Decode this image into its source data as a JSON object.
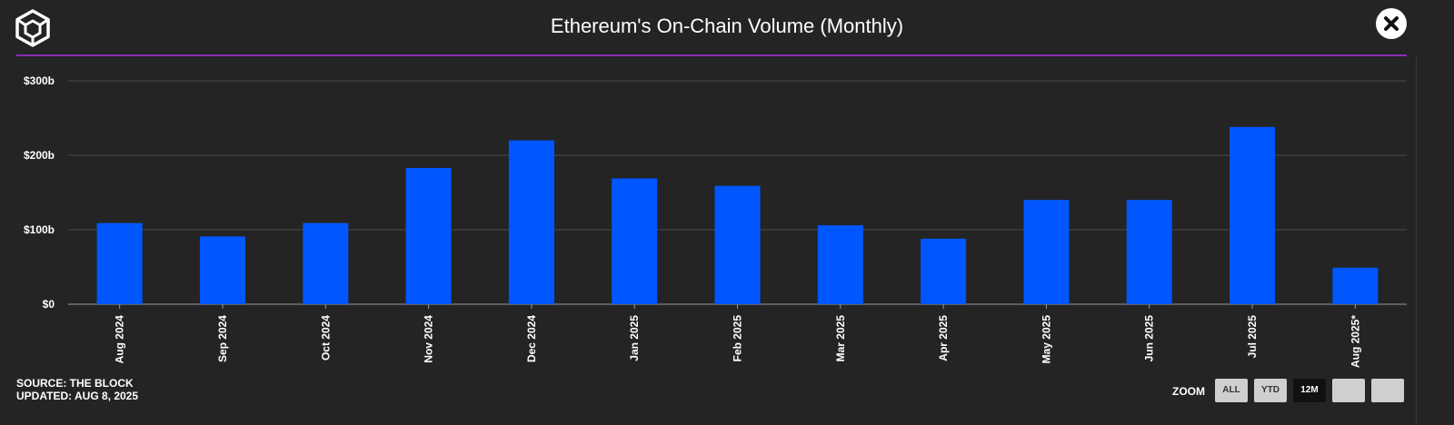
{
  "header": {
    "title": "Ethereum's On-Chain Volume (Monthly)"
  },
  "icons": {
    "logo": "cube-logo-icon",
    "close": "close-icon"
  },
  "colors": {
    "background": "#242424",
    "bar": "#0057ff",
    "accent_line": "#8a2bb8",
    "grid": "#4a4a4a"
  },
  "footer": {
    "source": "SOURCE: THE BLOCK",
    "updated": "UPDATED: AUG 8, 2025"
  },
  "zoom": {
    "label": "ZOOM",
    "buttons": [
      {
        "label": "ALL",
        "active": false
      },
      {
        "label": "YTD",
        "active": false
      },
      {
        "label": "12M",
        "active": true
      },
      {
        "label": "",
        "active": false
      },
      {
        "label": "",
        "active": false
      }
    ]
  },
  "chart_data": {
    "type": "bar",
    "title": "Ethereum's On-Chain Volume (Monthly)",
    "categories": [
      "Aug 2024",
      "Sep 2024",
      "Oct 2024",
      "Nov 2024",
      "Dec 2024",
      "Jan 2025",
      "Feb 2025",
      "Mar 2025",
      "Apr 2025",
      "May 2025",
      "Jun 2025",
      "Jul 2025",
      "Aug 2025*"
    ],
    "values": [
      109,
      91,
      109,
      183,
      220,
      169,
      159,
      106,
      88,
      140,
      140,
      238,
      49
    ],
    "unit": "billion USD",
    "ylim": [
      0,
      300
    ],
    "yticks": [
      0,
      100,
      200,
      300
    ],
    "ytick_labels": [
      "$0",
      "$100b",
      "$200b",
      "$300b"
    ],
    "grid": true,
    "legend": "none"
  }
}
